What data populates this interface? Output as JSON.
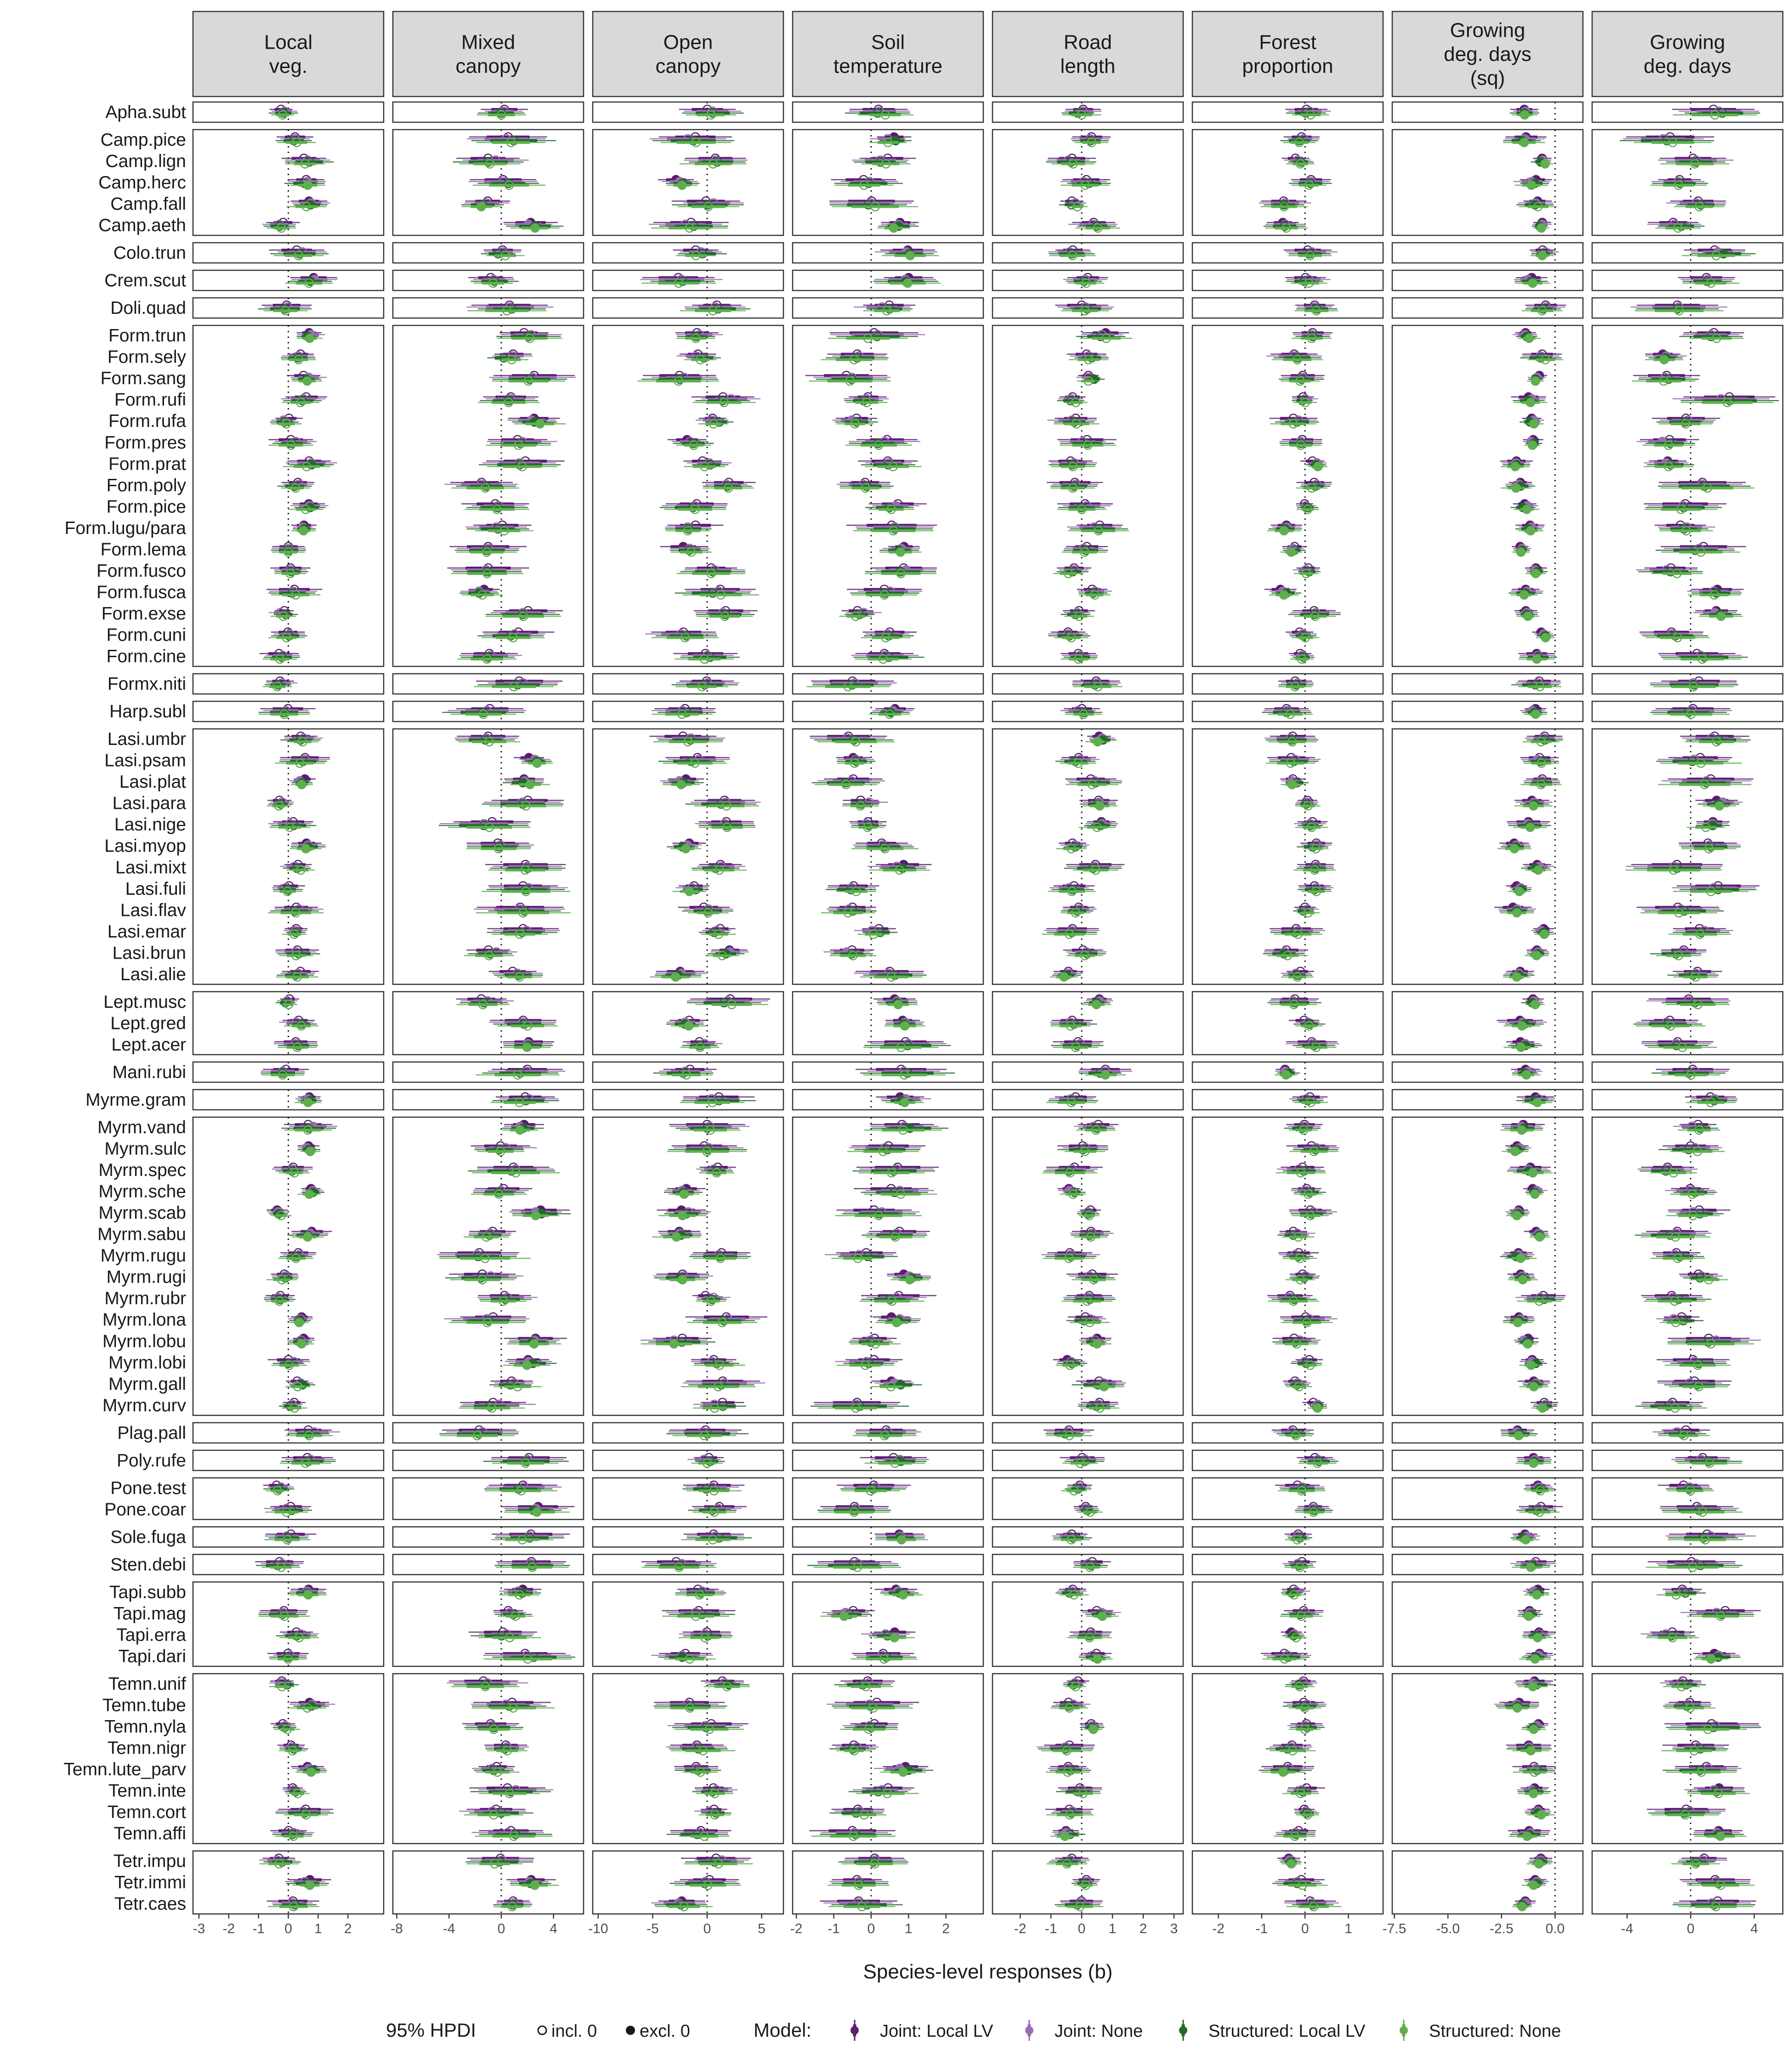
{
  "chart_data": {
    "type": "forest_plot",
    "xlabel": "Species-level responses (b)",
    "facets": [
      {
        "title": [
          "Local",
          "veg."
        ],
        "xlim": [
          -3.2,
          3.2
        ],
        "ticks": [
          -3,
          -2,
          -1,
          0,
          1,
          2
        ],
        "center": 0.2,
        "spread": 0.6
      },
      {
        "title": [
          "Mixed",
          "canopy"
        ],
        "xlim": [
          -8.3,
          6.3
        ],
        "ticks": [
          -8,
          -4,
          0,
          4
        ],
        "center": 0.5,
        "spread": 2.2
      },
      {
        "title": [
          "Open",
          "canopy"
        ],
        "xlim": [
          -10.5,
          7
        ],
        "ticks": [
          -10,
          -5,
          0,
          5
        ],
        "center": -0.5,
        "spread": 2.4
      },
      {
        "title": [
          "Soil",
          "temperature"
        ],
        "xlim": [
          -2.1,
          3
        ],
        "ticks": [
          -2,
          -1,
          0,
          1,
          2
        ],
        "center": 0.2,
        "spread": 0.8
      },
      {
        "title": [
          "Road",
          "length"
        ],
        "xlim": [
          -2.9,
          3.3
        ],
        "ticks": [
          -2,
          -1,
          0,
          1,
          2,
          3
        ],
        "center": 0.1,
        "spread": 0.6
      },
      {
        "title": [
          "Forest",
          "proportion"
        ],
        "xlim": [
          -2.6,
          1.8
        ],
        "ticks": [
          -2,
          -1,
          0,
          1
        ],
        "center": -0.1,
        "spread": 0.4
      },
      {
        "title": [
          "Growing",
          "deg. days",
          "(sq)"
        ],
        "xlim": [
          -7.6,
          1.3
        ],
        "ticks": [
          -7.5,
          -5.0,
          -2.5,
          0.0
        ],
        "tickLabels": [
          "-7.5",
          "-5.0",
          "-2.5",
          "0.0"
        ],
        "center": -1.2,
        "spread": 0.7
      },
      {
        "title": [
          "Growing",
          "deg. days"
        ],
        "xlim": [
          -6.2,
          5.8
        ],
        "ticks": [
          -4,
          0,
          4
        ],
        "center": 0.3,
        "spread": 1.9
      }
    ],
    "groups": [
      {
        "species": [
          "Apha.subt"
        ]
      },
      {
        "species": [
          "Camp.pice",
          "Camp.lign",
          "Camp.herc",
          "Camp.fall",
          "Camp.aeth"
        ]
      },
      {
        "species": [
          "Colo.trun"
        ]
      },
      {
        "species": [
          "Crem.scut"
        ]
      },
      {
        "species": [
          "Doli.quad"
        ]
      },
      {
        "species": [
          "Form.trun",
          "Form.sely",
          "Form.sang",
          "Form.rufi",
          "Form.rufa",
          "Form.pres",
          "Form.prat",
          "Form.poly",
          "Form.pice",
          "Form.lugu/para",
          "Form.lema",
          "Form.fusco",
          "Form.fusca",
          "Form.exse",
          "Form.cuni",
          "Form.cine"
        ]
      },
      {
        "species": [
          "Formx.niti"
        ]
      },
      {
        "species": [
          "Harp.subl"
        ]
      },
      {
        "species": [
          "Lasi.umbr",
          "Lasi.psam",
          "Lasi.plat",
          "Lasi.para",
          "Lasi.nige",
          "Lasi.myop",
          "Lasi.mixt",
          "Lasi.fuli",
          "Lasi.flav",
          "Lasi.emar",
          "Lasi.brun",
          "Lasi.alie"
        ]
      },
      {
        "species": [
          "Lept.musc",
          "Lept.gred",
          "Lept.acer"
        ]
      },
      {
        "species": [
          "Mani.rubi"
        ]
      },
      {
        "species": [
          "Myrme.gram"
        ]
      },
      {
        "species": [
          "Myrm.vand",
          "Myrm.sulc",
          "Myrm.spec",
          "Myrm.sche",
          "Myrm.scab",
          "Myrm.sabu",
          "Myrm.rugu",
          "Myrm.rugi",
          "Myrm.rubr",
          "Myrm.lona",
          "Myrm.lobu",
          "Myrm.lobi",
          "Myrm.gall",
          "Myrm.curv"
        ]
      },
      {
        "species": [
          "Plag.pall"
        ]
      },
      {
        "species": [
          "Poly.rufe"
        ]
      },
      {
        "species": [
          "Pone.test",
          "Pone.coar"
        ]
      },
      {
        "species": [
          "Sole.fuga"
        ]
      },
      {
        "species": [
          "Sten.debi"
        ]
      },
      {
        "species": [
          "Tapi.subb",
          "Tapi.mag",
          "Tapi.erra",
          "Tapi.dari"
        ]
      },
      {
        "species": [
          "Temn.unif",
          "Temn.tube",
          "Temn.nyla",
          "Temn.nigr",
          "Temn.lute_parv",
          "Temn.inte",
          "Temn.cort",
          "Temn.affi"
        ]
      },
      {
        "species": [
          "Tetr.impu",
          "Tetr.immi",
          "Tetr.caes"
        ]
      }
    ],
    "models": [
      {
        "name": "Joint: Local LV",
        "color": "#5a1e6e"
      },
      {
        "name": "Joint: None",
        "color": "#9a6bb3"
      },
      {
        "name": "Structured: Local LV",
        "color": "#1f6b2a"
      },
      {
        "name": "Structured: None",
        "color": "#5fae4f"
      }
    ],
    "hpdi_legend": {
      "title": "95% HPDI",
      "open": "incl. 0",
      "filled": "excl. 0"
    },
    "model_legend_title": "Model:",
    "reference_line": 0
  }
}
